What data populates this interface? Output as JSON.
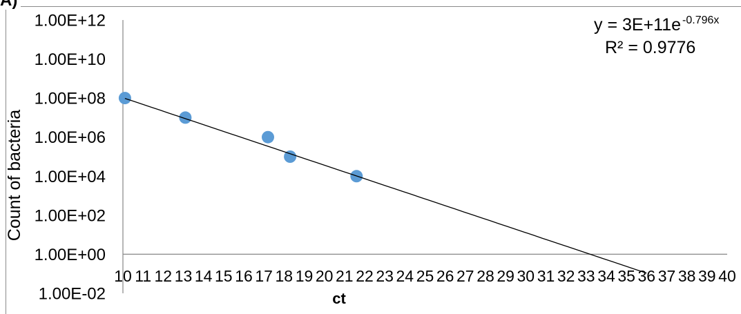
{
  "panel_label": "A)",
  "chart_data": {
    "type": "scatter",
    "xlabel": "ct",
    "ylabel": "Count of bacteria",
    "x": [
      10.1,
      13.1,
      17.2,
      18.3,
      21.6
    ],
    "y": [
      100000000,
      10000000,
      1000000,
      100000,
      10000
    ],
    "xlim": [
      10,
      40
    ],
    "ylim": [
      0.01,
      1000000000000
    ],
    "yscale": "log",
    "x_axis_crosses_y_at": 1,
    "grid": false,
    "x_ticks": [
      "10",
      "11",
      "12",
      "13",
      "14",
      "15",
      "16",
      "17",
      "18",
      "19",
      "20",
      "21",
      "22",
      "23",
      "24",
      "25",
      "26",
      "27",
      "28",
      "29",
      "30",
      "31",
      "32",
      "33",
      "34",
      "35",
      "36",
      "37",
      "38",
      "39",
      "40"
    ],
    "y_ticks": [
      "1.00E+12",
      "1.00E+10",
      "1.00E+08",
      "1.00E+06",
      "1.00E+04",
      "1.00E+02",
      "1.00E+00",
      "1.00E-02"
    ],
    "marker_color": "#5B9BD5",
    "trendline": {
      "type": "exponential",
      "a": 300000000000,
      "b": -0.796,
      "x_range": [
        10.1,
        36
      ],
      "color": "#000000",
      "equation_prefix": "y = 3E+11e",
      "equation_exponent": "-0.796x",
      "r_squared_label": "R² = 0.9776"
    }
  }
}
